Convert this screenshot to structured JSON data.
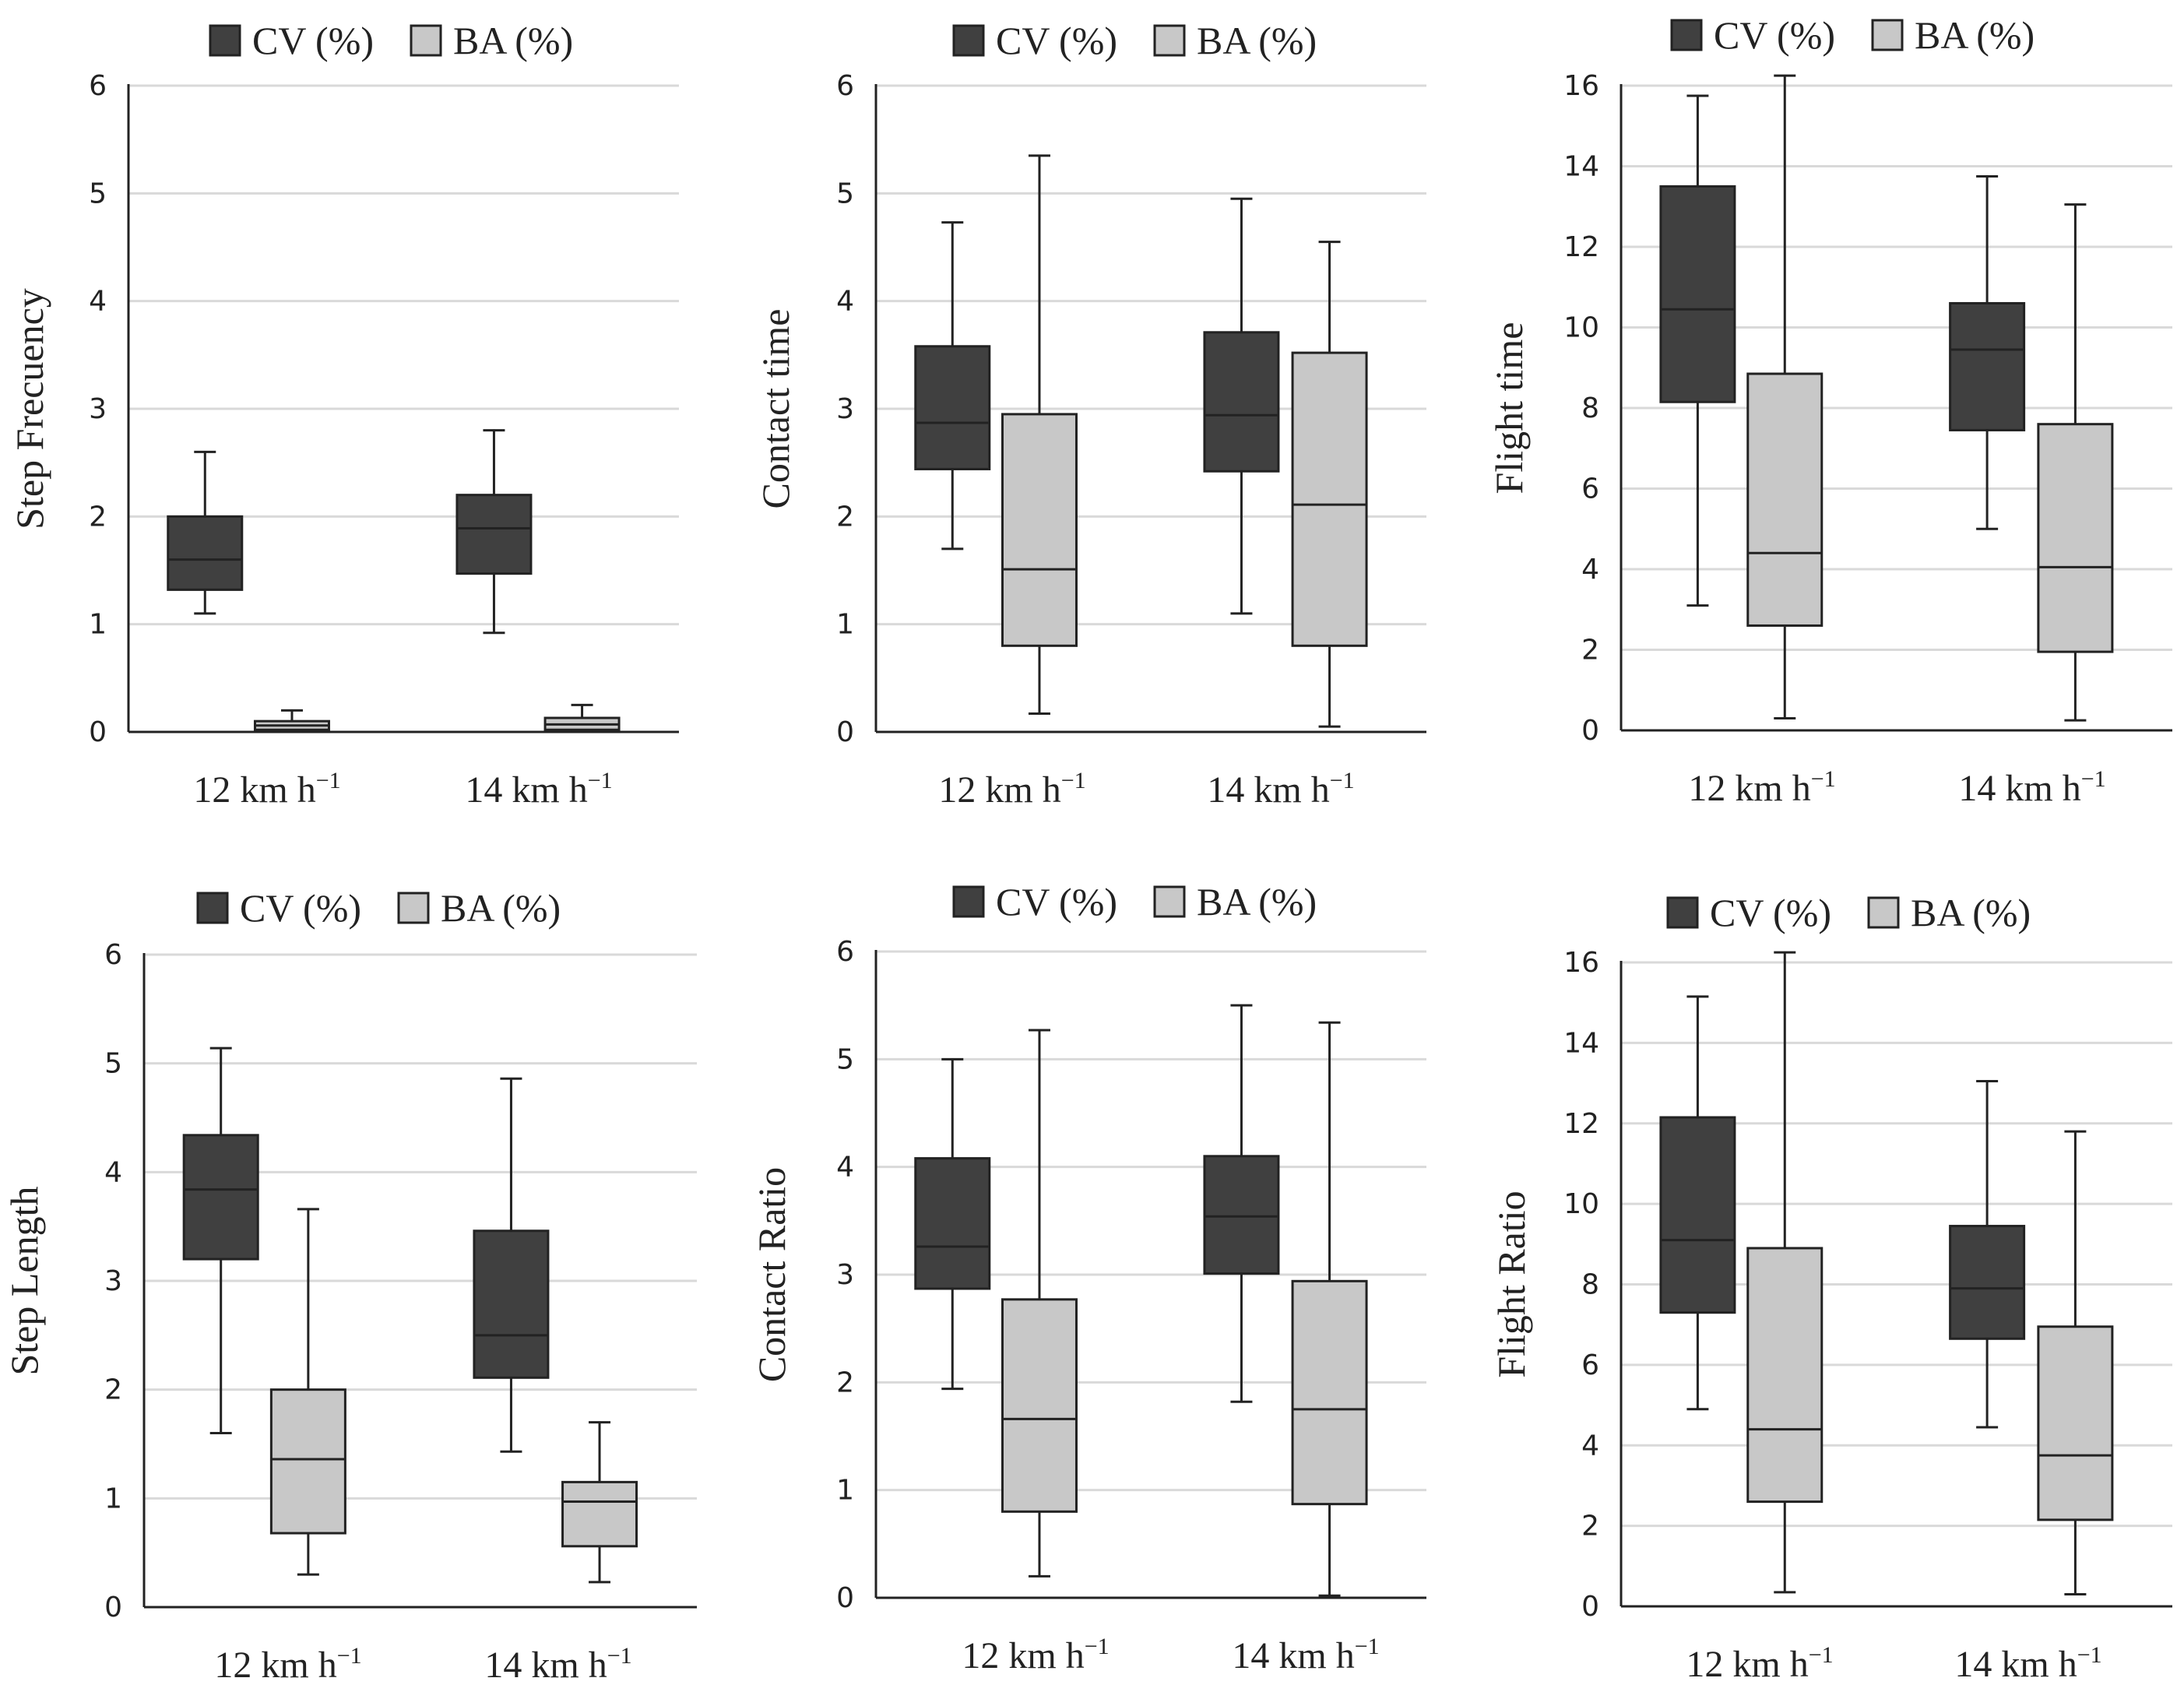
{
  "colors": {
    "cv": "#404040",
    "ba": "#c8c8c8",
    "grid": "#d9d9d9",
    "axis": "#222222"
  },
  "legend": {
    "cv_label": "CV (%)",
    "ba_label": "BA (%)"
  },
  "chart_data": [
    {
      "type": "boxplot",
      "title": "",
      "ylabel": "Step Frecuency",
      "ylim": [
        0,
        6
      ],
      "yticks": [
        0,
        1,
        2,
        3,
        4,
        5,
        6
      ],
      "categories": [
        {
          "base": "12 km h",
          "sup": "−1"
        },
        {
          "base": "14 km h",
          "sup": "−1"
        }
      ],
      "series": [
        {
          "name": "CV (%)",
          "boxes": [
            {
              "min": 1.1,
              "q1": 1.32,
              "median": 1.6,
              "q3": 2.0,
              "max": 2.6
            },
            {
              "min": 0.92,
              "q1": 1.47,
              "median": 1.89,
              "q3": 2.2,
              "max": 2.8
            }
          ]
        },
        {
          "name": "BA (%)",
          "boxes": [
            {
              "min": 0.0,
              "q1": 0.02,
              "median": 0.06,
              "q3": 0.1,
              "max": 0.2
            },
            {
              "min": 0.0,
              "q1": 0.02,
              "median": 0.07,
              "q3": 0.13,
              "max": 0.25
            }
          ]
        }
      ]
    },
    {
      "type": "boxplot",
      "title": "",
      "ylabel": "Contact  time",
      "ylim": [
        0,
        6
      ],
      "yticks": [
        0,
        1,
        2,
        3,
        4,
        5,
        6
      ],
      "categories": [
        {
          "base": "12 km h",
          "sup": "−1"
        },
        {
          "base": "14 km h",
          "sup": "−1"
        }
      ],
      "series": [
        {
          "name": "CV (%)",
          "boxes": [
            {
              "min": 1.7,
              "q1": 2.44,
              "median": 2.87,
              "q3": 3.58,
              "max": 4.73
            },
            {
              "min": 1.1,
              "q1": 2.42,
              "median": 2.94,
              "q3": 3.71,
              "max": 4.95
            }
          ]
        },
        {
          "name": "BA (%)",
          "boxes": [
            {
              "min": 0.17,
              "q1": 0.8,
              "median": 1.51,
              "q3": 2.95,
              "max": 5.35
            },
            {
              "min": 0.05,
              "q1": 0.8,
              "median": 2.11,
              "q3": 3.52,
              "max": 4.55
            }
          ]
        }
      ]
    },
    {
      "type": "boxplot",
      "title": "",
      "ylabel": "Flight  time",
      "ylim": [
        0,
        16
      ],
      "yticks": [
        0,
        2,
        4,
        6,
        8,
        10,
        12,
        14,
        16
      ],
      "categories": [
        {
          "base": "12 km h",
          "sup": "−1"
        },
        {
          "base": "14 km h",
          "sup": "−1"
        }
      ],
      "series": [
        {
          "name": "CV (%)",
          "boxes": [
            {
              "min": 3.1,
              "q1": 8.15,
              "median": 10.45,
              "q3": 13.5,
              "max": 15.75
            },
            {
              "min": 5.0,
              "q1": 7.45,
              "median": 9.45,
              "q3": 10.6,
              "max": 13.75
            }
          ]
        },
        {
          "name": "BA (%)",
          "boxes": [
            {
              "min": 0.3,
              "q1": 2.6,
              "median": 4.4,
              "q3": 8.85,
              "max": 16.25
            },
            {
              "min": 0.25,
              "q1": 1.95,
              "median": 4.05,
              "q3": 7.6,
              "max": 13.05
            }
          ]
        }
      ]
    },
    {
      "type": "boxplot",
      "title": "",
      "ylabel": "Step Length",
      "ylim": [
        0,
        6
      ],
      "yticks": [
        0,
        1,
        2,
        3,
        4,
        5,
        6
      ],
      "categories": [
        {
          "base": "12 km h",
          "sup": "−1"
        },
        {
          "base": "14 km h",
          "sup": "−1"
        }
      ],
      "series": [
        {
          "name": "CV (%)",
          "boxes": [
            {
              "min": 1.6,
              "q1": 3.2,
              "median": 3.84,
              "q3": 4.34,
              "max": 5.14
            },
            {
              "min": 1.43,
              "q1": 2.11,
              "median": 2.5,
              "q3": 3.46,
              "max": 4.86
            }
          ]
        },
        {
          "name": "BA (%)",
          "boxes": [
            {
              "min": 0.3,
              "q1": 0.68,
              "median": 1.36,
              "q3": 2.0,
              "max": 3.66
            },
            {
              "min": 0.23,
              "q1": 0.56,
              "median": 0.97,
              "q3": 1.15,
              "max": 1.7
            }
          ]
        }
      ]
    },
    {
      "type": "boxplot",
      "title": "",
      "ylabel": "Contact Ratio",
      "ylim": [
        0,
        6
      ],
      "yticks": [
        0,
        1,
        2,
        3,
        4,
        5,
        6
      ],
      "categories": [
        {
          "base": "12 km h",
          "sup": "−1"
        },
        {
          "base": "14 km h",
          "sup": "−1"
        }
      ],
      "series": [
        {
          "name": "CV (%)",
          "boxes": [
            {
              "min": 1.94,
              "q1": 2.87,
              "median": 3.26,
              "q3": 4.08,
              "max": 5.0
            },
            {
              "min": 1.82,
              "q1": 3.01,
              "median": 3.54,
              "q3": 4.1,
              "max": 5.5
            }
          ]
        },
        {
          "name": "BA (%)",
          "boxes": [
            {
              "min": 0.2,
              "q1": 0.8,
              "median": 1.66,
              "q3": 2.77,
              "max": 5.27
            },
            {
              "min": 0.02,
              "q1": 0.87,
              "median": 1.75,
              "q3": 2.94,
              "max": 5.34
            }
          ]
        }
      ]
    },
    {
      "type": "boxplot",
      "title": "",
      "ylabel": "Flight Ratio",
      "ylim": [
        0,
        16
      ],
      "yticks": [
        0,
        2,
        4,
        6,
        8,
        10,
        12,
        14,
        16
      ],
      "categories": [
        {
          "base": "12 km h",
          "sup": "−1"
        },
        {
          "base": "14 km h",
          "sup": "−1"
        }
      ],
      "series": [
        {
          "name": "CV (%)",
          "boxes": [
            {
              "min": 4.9,
              "q1": 7.3,
              "median": 9.1,
              "q3": 12.15,
              "max": 15.15
            },
            {
              "min": 4.45,
              "q1": 6.65,
              "median": 7.9,
              "q3": 9.45,
              "max": 13.05
            }
          ]
        },
        {
          "name": "BA (%)",
          "boxes": [
            {
              "min": 0.35,
              "q1": 2.6,
              "median": 4.4,
              "q3": 8.9,
              "max": 16.25
            },
            {
              "min": 0.3,
              "q1": 2.15,
              "median": 3.75,
              "q3": 6.95,
              "max": 11.8
            }
          ]
        }
      ]
    }
  ]
}
